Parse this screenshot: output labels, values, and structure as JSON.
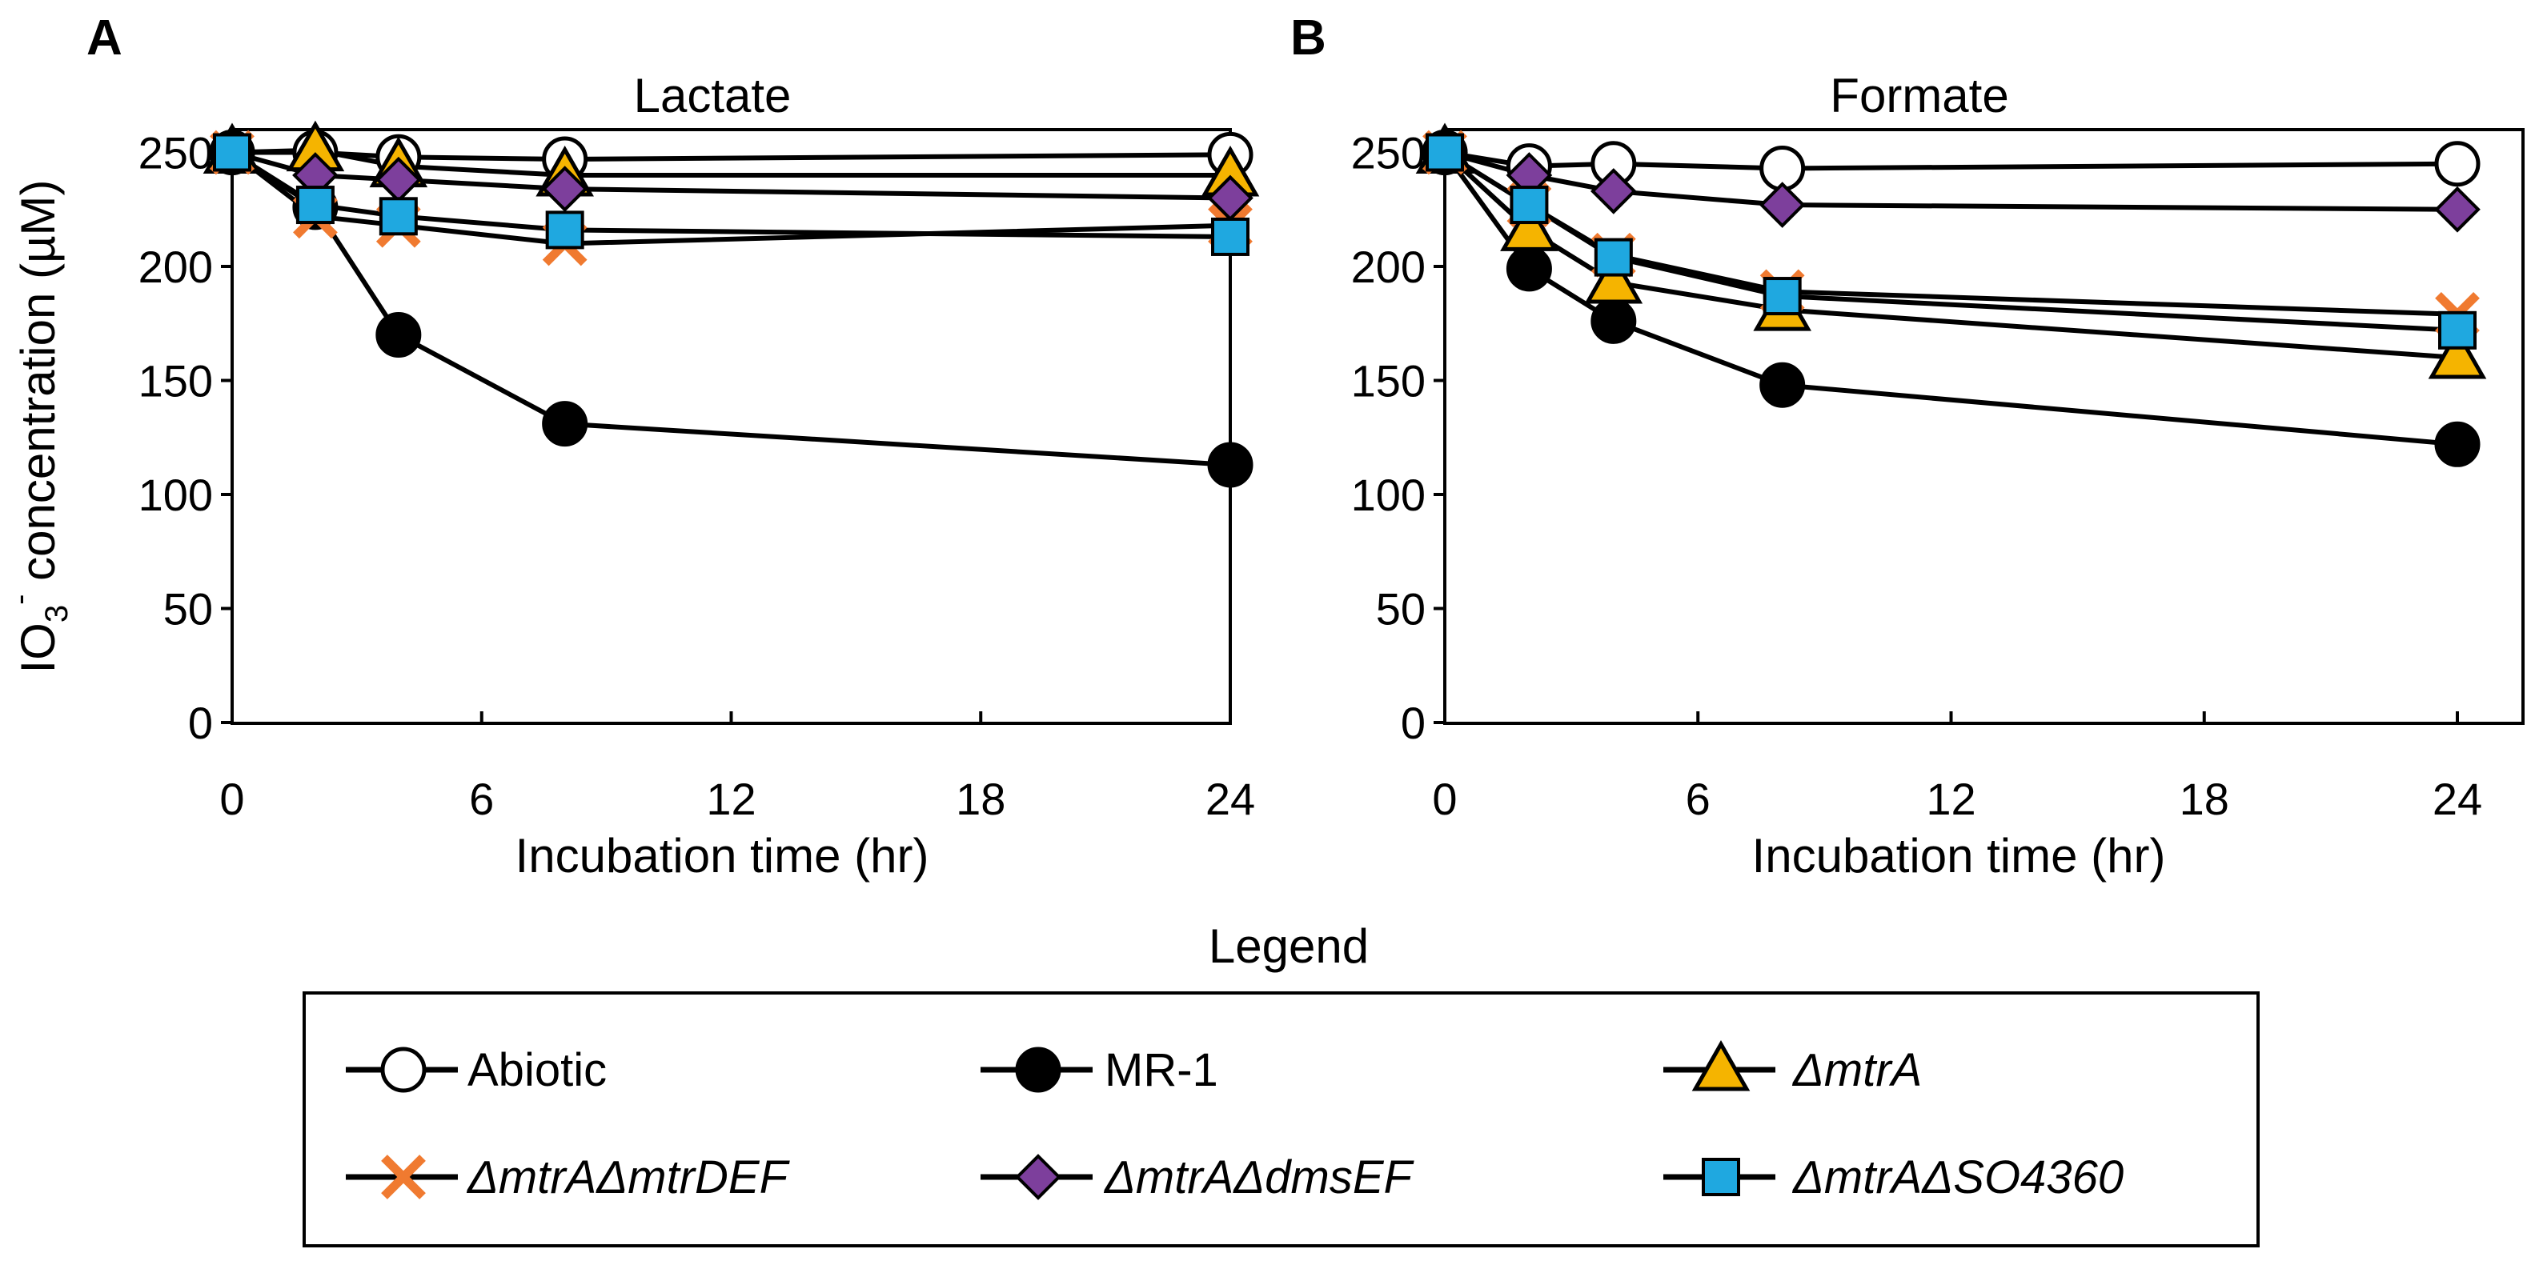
{
  "chart_data": [
    {
      "type": "line",
      "panel_letter": "A",
      "title": "Lactate",
      "xlabel": "Incubation time (hr)",
      "ylabel": "IO3- concentration (µM)",
      "ylabel_parts": {
        "base": "IO",
        "sub": "3",
        "sup": "-",
        "rest": " concentration (µM)"
      },
      "xlim": [
        0,
        24
      ],
      "ylim": [
        0,
        260
      ],
      "x_ticks": [
        "0",
        "6",
        "12",
        "18",
        "24"
      ],
      "y_ticks": [
        "0",
        "50",
        "100",
        "150",
        "200",
        "250"
      ],
      "grid": false,
      "series": [
        {
          "name": "Abiotic",
          "x": [
            0,
            2,
            4,
            8,
            24
          ],
          "values": [
            250,
            250,
            248,
            247,
            249
          ]
        },
        {
          "name": "MR-1",
          "x": [
            0,
            2,
            4,
            8,
            24
          ],
          "values": [
            250,
            226,
            170,
            131,
            113
          ]
        },
        {
          "name": "ΔmtrA",
          "x": [
            0,
            2,
            4,
            8,
            24
          ],
          "values": [
            250,
            251,
            244,
            240,
            240
          ]
        },
        {
          "name": "ΔmtrAΔmtrDEF",
          "x": [
            0,
            2,
            4,
            8,
            24
          ],
          "values": [
            250,
            222,
            218,
            210,
            218
          ]
        },
        {
          "name": "ΔmtrAΔdmsEF",
          "x": [
            0,
            2,
            4,
            8,
            24
          ],
          "values": [
            250,
            240,
            238,
            234,
            230
          ]
        },
        {
          "name": "ΔmtrAΔSO4360",
          "x": [
            0,
            2,
            4,
            8,
            24
          ],
          "values": [
            250,
            227,
            222,
            216,
            213
          ]
        }
      ]
    },
    {
      "type": "line",
      "panel_letter": "B",
      "title": "Formate",
      "xlabel": "Incubation time (hr)",
      "xlim": [
        0,
        24
      ],
      "ylim": [
        0,
        260
      ],
      "x_ticks": [
        "0",
        "6",
        "12",
        "18",
        "24"
      ],
      "y_ticks": [
        "0",
        "50",
        "100",
        "150",
        "200",
        "250"
      ],
      "grid": false,
      "series": [
        {
          "name": "Abiotic",
          "x": [
            0,
            2,
            4,
            8,
            24
          ],
          "values": [
            250,
            244,
            245,
            243,
            245
          ]
        },
        {
          "name": "MR-1",
          "x": [
            0,
            2,
            4,
            8,
            24
          ],
          "values": [
            250,
            199,
            176,
            148,
            122
          ]
        },
        {
          "name": "ΔmtrA",
          "x": [
            0,
            2,
            4,
            8,
            24
          ],
          "values": [
            250,
            216,
            193,
            181,
            160
          ]
        },
        {
          "name": "ΔmtrAΔmtrDEF",
          "x": [
            0,
            2,
            4,
            8,
            24
          ],
          "values": [
            250,
            227,
            205,
            189,
            179
          ]
        },
        {
          "name": "ΔmtrAΔdmsEF",
          "x": [
            0,
            2,
            4,
            8,
            24
          ],
          "values": [
            250,
            240,
            233,
            227,
            225
          ]
        },
        {
          "name": "ΔmtrAΔSO4360",
          "x": [
            0,
            2,
            4,
            8,
            24
          ],
          "values": [
            250,
            227,
            204,
            187,
            172
          ]
        }
      ]
    }
  ],
  "legend": {
    "title": "Legend",
    "items": [
      {
        "label": "Abiotic",
        "marker": "circle-open",
        "italic": false
      },
      {
        "label": "MR-1",
        "marker": "circle-filled",
        "italic": false
      },
      {
        "label": "ΔmtrA",
        "marker": "triangle",
        "italic": true
      },
      {
        "label": "ΔmtrAΔmtrDEF",
        "marker": "cross",
        "italic": true
      },
      {
        "label": "ΔmtrAΔdmsEF",
        "marker": "diamond",
        "italic": true
      },
      {
        "label": "ΔmtrAΔSO4360",
        "marker": "square",
        "italic": true
      }
    ]
  },
  "colors": {
    "line": "#000000",
    "triangle": "#f5b400",
    "cross": "#f07a30",
    "diamond": "#7d3f9c",
    "square": "#1fa8e0",
    "filled_circle": "#000000",
    "open_circle": "#ffffff"
  }
}
